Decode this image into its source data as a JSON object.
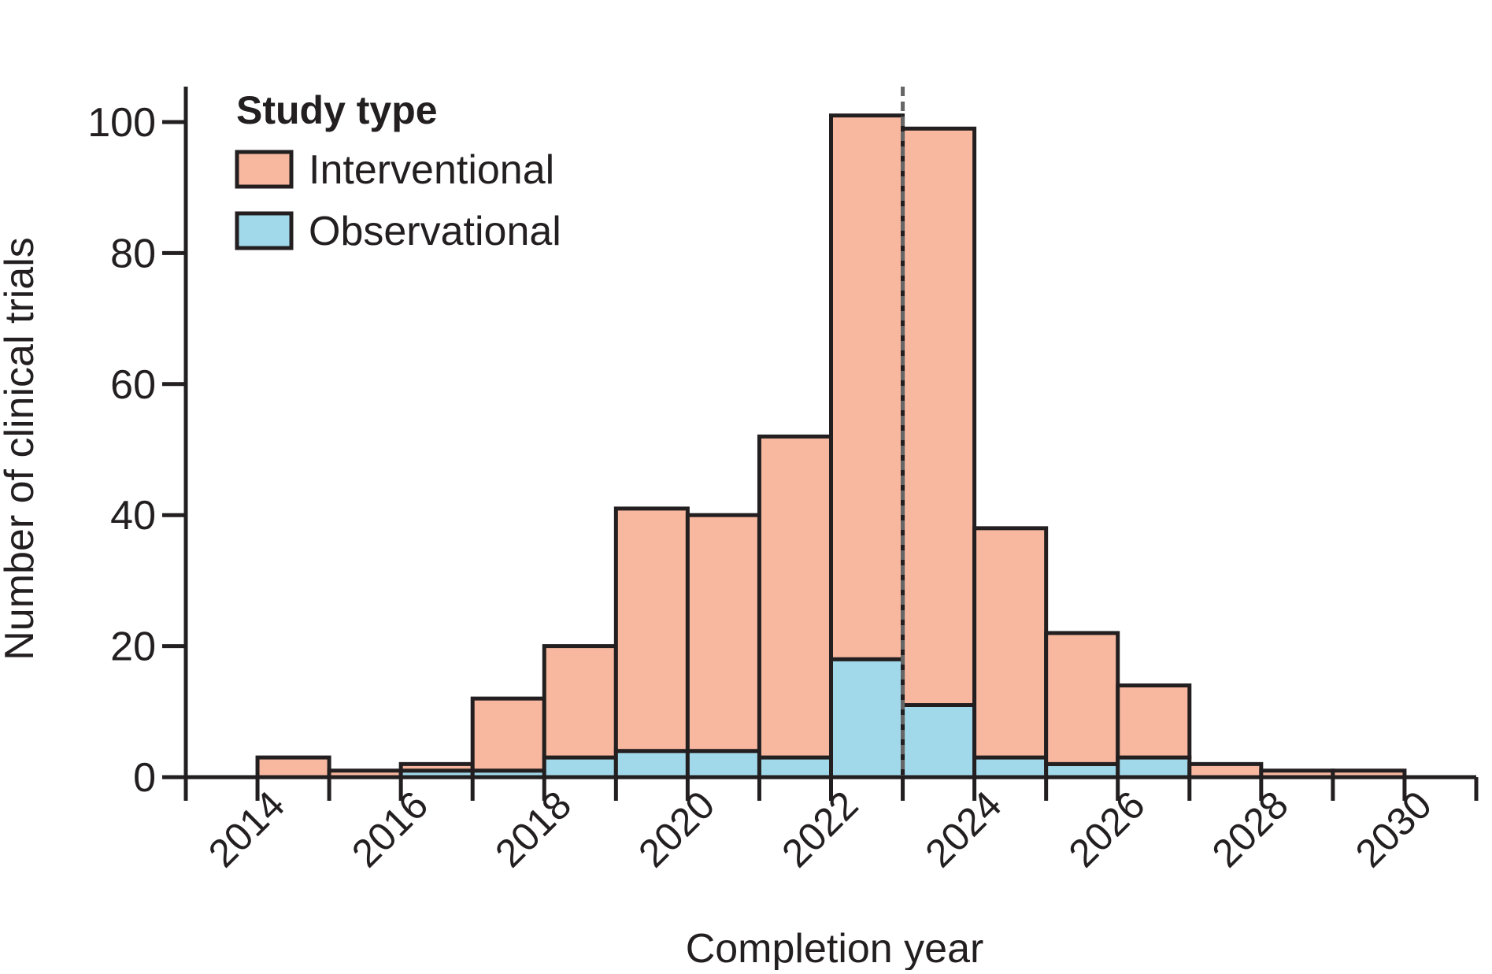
{
  "chart_data": {
    "type": "bar",
    "stacked": true,
    "title": "",
    "xlabel": "Completion year",
    "ylabel": "Number of clinical trials",
    "xlim": [
      2013,
      2031
    ],
    "ylim": [
      0,
      100
    ],
    "yticks": [
      0,
      20,
      40,
      60,
      80,
      100
    ],
    "xticks": [
      "2014",
      "2016",
      "2018",
      "2020",
      "2022",
      "2024",
      "2026",
      "2028",
      "2030"
    ],
    "bins": [
      {
        "start": 2014,
        "end": 2015,
        "observational": 0,
        "interventional": 3
      },
      {
        "start": 2015,
        "end": 2016,
        "observational": 0,
        "interventional": 1
      },
      {
        "start": 2016,
        "end": 2017,
        "observational": 1,
        "interventional": 1
      },
      {
        "start": 2017,
        "end": 2018,
        "observational": 1,
        "interventional": 11
      },
      {
        "start": 2018,
        "end": 2019,
        "observational": 3,
        "interventional": 17
      },
      {
        "start": 2019,
        "end": 2020,
        "observational": 4,
        "interventional": 37
      },
      {
        "start": 2020,
        "end": 2021,
        "observational": 4,
        "interventional": 36
      },
      {
        "start": 2021,
        "end": 2022,
        "observational": 3,
        "interventional": 49
      },
      {
        "start": 2022,
        "end": 2023,
        "observational": 18,
        "interventional": 83
      },
      {
        "start": 2023,
        "end": 2024,
        "observational": 11,
        "interventional": 88
      },
      {
        "start": 2024,
        "end": 2025,
        "observational": 3,
        "interventional": 35
      },
      {
        "start": 2025,
        "end": 2026,
        "observational": 2,
        "interventional": 20
      },
      {
        "start": 2026,
        "end": 2027,
        "observational": 3,
        "interventional": 11
      },
      {
        "start": 2027,
        "end": 2028,
        "observational": 0,
        "interventional": 2
      },
      {
        "start": 2028,
        "end": 2029,
        "observational": 0,
        "interventional": 1
      },
      {
        "start": 2029,
        "end": 2030,
        "observational": 0,
        "interventional": 1
      }
    ],
    "reference_line_x": 2023,
    "legend": {
      "title": "Study type",
      "placement": "top-left",
      "items": [
        {
          "key": "interventional",
          "label": "Interventional",
          "color": "#f8b8a0"
        },
        {
          "key": "observational",
          "label": "Observational",
          "color": "#a2d9ea"
        }
      ]
    },
    "colors": {
      "interventional": "#f8b8a0",
      "observational": "#a2d9ea",
      "outline": "#231f20",
      "reference_line": "#666666"
    }
  }
}
